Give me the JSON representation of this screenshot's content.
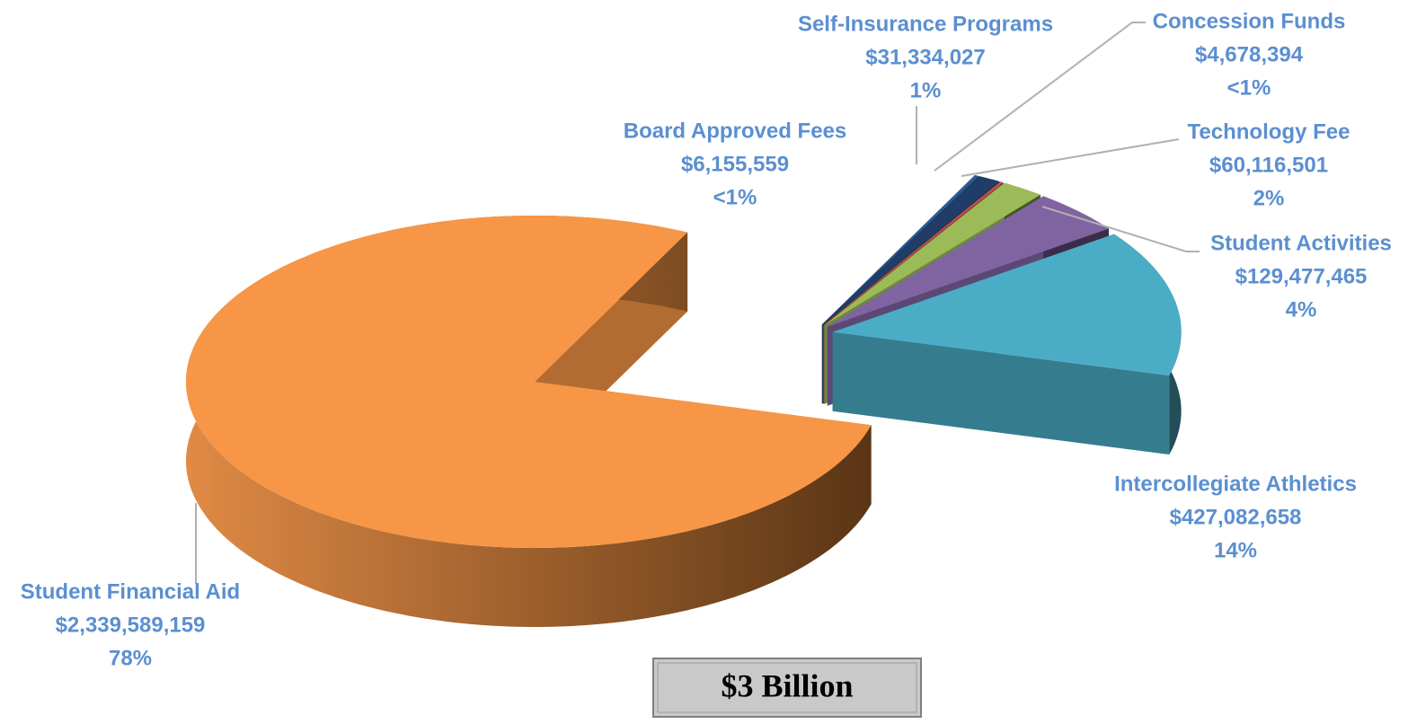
{
  "chart_data": {
    "type": "pie3d",
    "categories": [
      "Student Financial Aid",
      "Board Approved Fees",
      "Self-Insurance Programs",
      "Concession Funds",
      "Technology Fee",
      "Student Activities",
      "Intercollegiate Athletics"
    ],
    "values": [
      2339589159,
      6155559,
      31334027,
      4678394,
      60116501,
      129477465,
      427082658
    ],
    "value_labels": [
      "$2,339,589,159",
      "$6,155,559",
      "$31,334,027",
      "$4,678,394",
      "$60,116,501",
      "$129,477,465",
      "$427,082,658"
    ],
    "percent_labels": [
      "78%",
      "<1%",
      "1%",
      "<1%",
      "2%",
      "4%",
      "14%"
    ],
    "colors": [
      "#f79646",
      "#2e5a94",
      "#1f3d66",
      "#c0504d",
      "#9bbb59",
      "#8064a2",
      "#4bacc6"
    ],
    "total_label": "$3 Billion"
  }
}
